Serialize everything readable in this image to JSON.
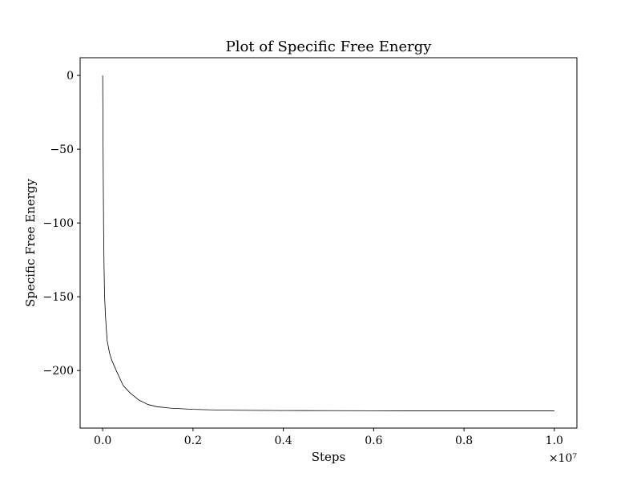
{
  "chart_data": {
    "type": "line",
    "title": "Plot of Specific Free Energy",
    "xlabel": "Steps",
    "ylabel": "Specific Free Energy",
    "x_offset_text": "×10⁷",
    "xlim": [
      -0.05,
      1.05
    ],
    "ylim": [
      -239,
      12
    ],
    "grid": false,
    "x_ticks": [
      0.0,
      0.2,
      0.4,
      0.6,
      0.8,
      1.0
    ],
    "x_tick_labels": [
      "0.0",
      "0.2",
      "0.4",
      "0.6",
      "0.8",
      "1.0"
    ],
    "y_ticks": [
      0,
      -50,
      -100,
      -150,
      -200
    ],
    "y_tick_labels": [
      "0",
      "−50",
      "−100",
      "−150",
      "−200"
    ],
    "series": [
      {
        "color": "#000000",
        "x": [
          0.0,
          0.001,
          0.002,
          0.003,
          0.004,
          0.006,
          0.008,
          0.01,
          0.015,
          0.02,
          0.03,
          0.045,
          0.06,
          0.08,
          0.1,
          0.12,
          0.15,
          0.2,
          0.25,
          0.3,
          0.4,
          0.5,
          0.6,
          0.7,
          0.8,
          0.9,
          1.0
        ],
        "y": [
          0,
          -60,
          -105,
          -130,
          -148,
          -162,
          -172,
          -180,
          -188,
          -193,
          -200,
          -210,
          -215,
          -220,
          -223,
          -224.5,
          -225.5,
          -226.3,
          -226.7,
          -226.9,
          -227.1,
          -227.2,
          -227.25,
          -227.3,
          -227.3,
          -227.3,
          -227.3
        ]
      }
    ]
  }
}
